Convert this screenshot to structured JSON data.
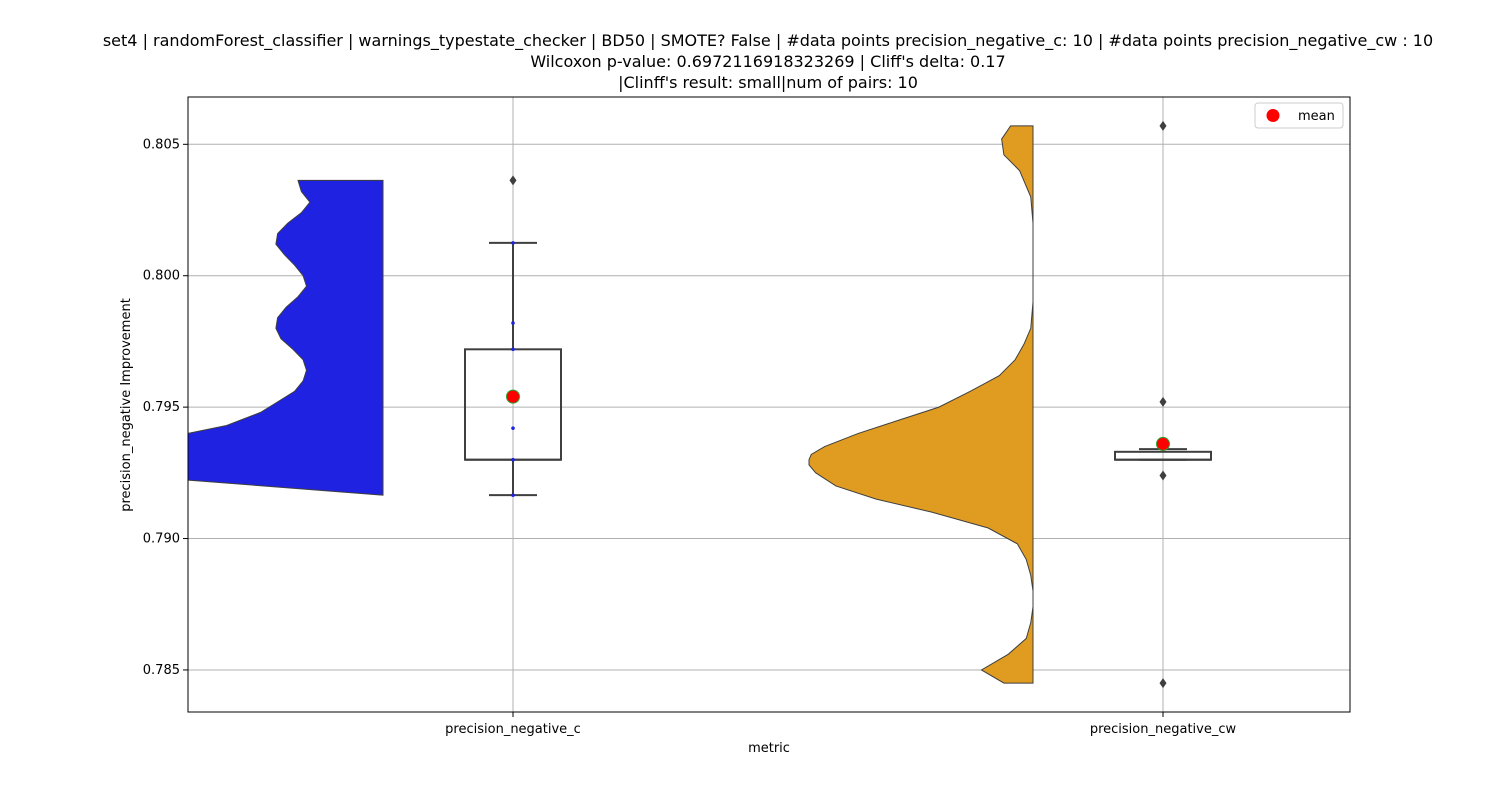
{
  "title_lines": [
    "set4 | randomForest_classifier | warnings_typestate_checker | BD50 | SMOTE? False | #data points precision_negative_c: 10 | #data points precision_negative_cw : 10",
    "Wilcoxon p-value: 0.6972116918323269 | Cliff's delta: 0.17",
    "|Clinff's result: small|num of pairs: 10"
  ],
  "chart_data": {
    "type": "violin+box",
    "xlabel": "metric",
    "ylabel": "precision_negative Improvement",
    "ylim": [
      0.7834,
      0.8068
    ],
    "yticks": [
      0.785,
      0.79,
      0.795,
      0.8,
      0.805
    ],
    "ytick_labels": [
      "0.785",
      "0.790",
      "0.795",
      "0.800",
      "0.805"
    ],
    "grid": true,
    "legend": {
      "position": "top-right",
      "entries": [
        {
          "label": "mean",
          "color": "#ff0000",
          "marker": "circle"
        }
      ]
    },
    "categories": [
      "precision_negative_c",
      "precision_negative_cw"
    ],
    "series": [
      {
        "category": "precision_negative_c",
        "violin_color": "#1f22e0",
        "violin": {
          "y": [
            0.79165,
            0.7923,
            0.7932,
            0.7938,
            0.7943,
            0.7948,
            0.7952,
            0.7956,
            0.796,
            0.7964,
            0.7968,
            0.7972,
            0.7976,
            0.798,
            0.7984,
            0.7988,
            0.7992,
            0.7996,
            0.8,
            0.8004,
            0.8008,
            0.8012,
            0.8016,
            0.802,
            0.8024,
            0.8028,
            0.8032,
            0.80363
          ],
          "density": [
            0.0,
            1.3,
            1.8,
            1.3,
            0.92,
            0.72,
            0.62,
            0.52,
            0.47,
            0.45,
            0.47,
            0.53,
            0.6,
            0.63,
            0.62,
            0.57,
            0.5,
            0.45,
            0.47,
            0.52,
            0.58,
            0.63,
            0.62,
            0.56,
            0.48,
            0.43,
            0.48,
            0.5
          ]
        },
        "box": {
          "q1": 0.793,
          "median": 0.793,
          "q3": 0.7972,
          "whisker_low": 0.79165,
          "whisker_high": 0.80125
        },
        "points": [
          0.79165,
          0.793,
          0.7942,
          0.7972,
          0.7982,
          0.80125
        ],
        "outliers": [
          0.80363
        ],
        "mean": 0.7954
      },
      {
        "category": "precision_negative_cw",
        "violin_color": "#e09c20",
        "violin": {
          "y": [
            0.7845,
            0.785,
            0.7856,
            0.7862,
            0.7868,
            0.7874,
            0.788,
            0.7886,
            0.7892,
            0.7898,
            0.7904,
            0.791,
            0.7915,
            0.792,
            0.7925,
            0.7928,
            0.793,
            0.7932,
            0.7935,
            0.794,
            0.7945,
            0.795,
            0.7956,
            0.7962,
            0.7968,
            0.7974,
            0.798,
            0.799,
            0.8,
            0.801,
            0.802,
            0.803,
            0.804,
            0.8046,
            0.8052,
            0.8057
          ],
          "density": [
            0.13,
            0.23,
            0.11,
            0.03,
            0.01,
            0.0,
            0.0,
            0.01,
            0.03,
            0.07,
            0.2,
            0.45,
            0.7,
            0.88,
            0.97,
            1.0,
            1.0,
            0.99,
            0.93,
            0.78,
            0.6,
            0.42,
            0.28,
            0.15,
            0.08,
            0.04,
            0.01,
            0.0,
            0.0,
            0.0,
            0.0,
            0.01,
            0.06,
            0.13,
            0.14,
            0.1
          ]
        },
        "box": {
          "q1": 0.793,
          "median": 0.793,
          "q3": 0.7933,
          "whisker_low": 0.793,
          "whisker_high": 0.7934
        },
        "points": [],
        "outliers": [
          0.8057,
          0.7952,
          0.7924,
          0.7845
        ],
        "mean": 0.7936
      }
    ]
  }
}
